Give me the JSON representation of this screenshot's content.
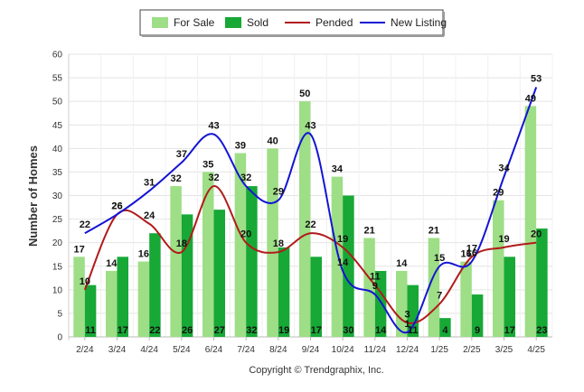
{
  "chart_data": {
    "type": "bar",
    "ylabel": "Number of Homes",
    "xlabel": "",
    "ylim": [
      0,
      60
    ],
    "yticks": [
      0,
      5,
      10,
      15,
      20,
      25,
      30,
      35,
      40,
      45,
      50,
      55,
      60
    ],
    "grid": true,
    "legend_position": "top-center",
    "categories": [
      "2/24",
      "3/24",
      "4/24",
      "5/24",
      "6/24",
      "7/24",
      "8/24",
      "9/24",
      "10/24",
      "11/24",
      "12/24",
      "1/25",
      "2/25",
      "3/25",
      "4/25"
    ],
    "series": [
      {
        "name": "For Sale",
        "kind": "bar",
        "color": "#9ede86",
        "values": [
          17,
          14,
          16,
          32,
          35,
          39,
          40,
          50,
          34,
          21,
          14,
          21,
          16,
          29,
          49
        ]
      },
      {
        "name": "Sold",
        "kind": "bar",
        "color": "#17a836",
        "values": [
          11,
          17,
          22,
          26,
          27,
          32,
          19,
          17,
          30,
          14,
          11,
          4,
          9,
          17,
          23
        ]
      },
      {
        "name": "Pended",
        "kind": "line",
        "color": "#b01b1b",
        "values": [
          10,
          26,
          24,
          18,
          32,
          20,
          18,
          22,
          19,
          11,
          3,
          7,
          17,
          19,
          20
        ]
      },
      {
        "name": "New Listing",
        "kind": "line",
        "color": "#1414d4",
        "values": [
          22,
          26,
          31,
          37,
          43,
          32,
          29,
          43,
          14,
          9,
          1,
          15,
          16,
          34,
          53
        ]
      }
    ],
    "footer": "Copyright © Trendgraphix, Inc."
  }
}
